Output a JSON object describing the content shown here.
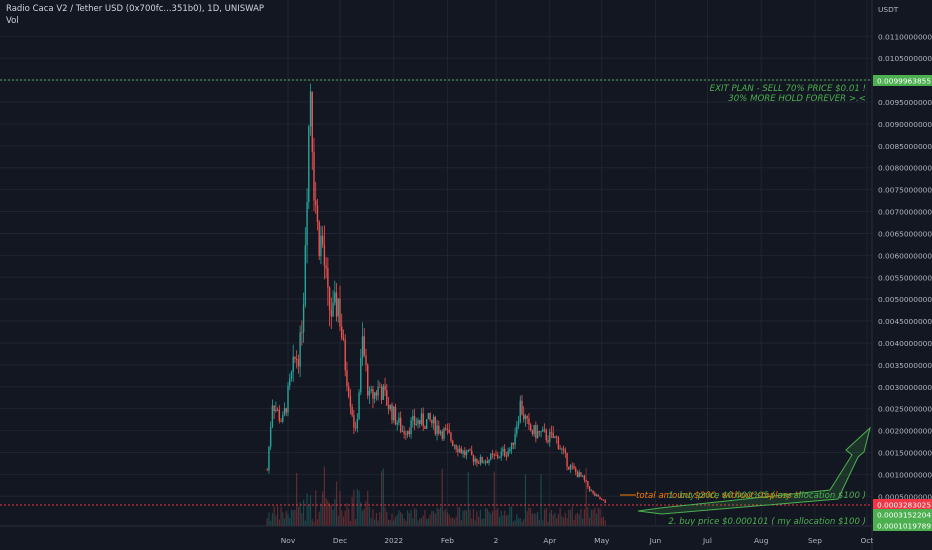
{
  "header": {
    "title": "Radio Caca V2 / Tether USD (0x700fc...351b0), 1D, UNISWAP",
    "volume_label": "Vol",
    "currency": "USDT"
  },
  "chart_data": {
    "type": "candlestick",
    "title": "Radio Caca V2 / Tether USD (0x700fc...351b0), 1D, UNISWAP",
    "ylim": [
      0,
      0.0115
    ],
    "y_ticks": [
      "0.0110000000",
      "0.0105000000",
      "0.0095000000",
      "0.0090000000",
      "0.0085000000",
      "0.0080000000",
      "0.0075000000",
      "0.0070000000",
      "0.0065000000",
      "0.0060000000",
      "0.0055000000",
      "0.0050000000",
      "0.0045000000",
      "0.0040000000",
      "0.0035000000",
      "0.0030000000",
      "0.0025000000",
      "0.0020000000",
      "0.0015000000",
      "0.0010000000",
      "0.0005000000"
    ],
    "x_ticks": [
      "Nov",
      "Dec",
      "2022",
      "Feb",
      "2",
      "Apr",
      "May",
      "Jun",
      "Jul",
      "Aug",
      "Sep",
      "Oct"
    ],
    "price_path": [
      {
        "date": "2021-10-20",
        "price": 0.0011
      },
      {
        "date": "2021-10-23",
        "price": 0.0027
      },
      {
        "date": "2021-10-26",
        "price": 0.0024
      },
      {
        "date": "2021-10-29",
        "price": 0.0022
      },
      {
        "date": "2021-11-01",
        "price": 0.0028
      },
      {
        "date": "2021-11-05",
        "price": 0.0036
      },
      {
        "date": "2021-11-08",
        "price": 0.0039
      },
      {
        "date": "2021-11-10",
        "price": 0.0052
      },
      {
        "date": "2021-11-12",
        "price": 0.0079
      },
      {
        "date": "2021-11-14",
        "price": 0.01
      },
      {
        "date": "2021-11-16",
        "price": 0.0078
      },
      {
        "date": "2021-11-18",
        "price": 0.0066
      },
      {
        "date": "2021-11-21",
        "price": 0.0062
      },
      {
        "date": "2021-11-24",
        "price": 0.0049
      },
      {
        "date": "2021-11-27",
        "price": 0.0046
      },
      {
        "date": "2021-11-30",
        "price": 0.005
      },
      {
        "date": "2021-12-03",
        "price": 0.0038
      },
      {
        "date": "2021-12-06",
        "price": 0.003
      },
      {
        "date": "2021-12-10",
        "price": 0.0019
      },
      {
        "date": "2021-12-14",
        "price": 0.004
      },
      {
        "date": "2021-12-18",
        "price": 0.0027
      },
      {
        "date": "2021-12-24",
        "price": 0.003
      },
      {
        "date": "2021-12-30",
        "price": 0.0025
      },
      {
        "date": "2022-01-06",
        "price": 0.002
      },
      {
        "date": "2022-01-14",
        "price": 0.0022
      },
      {
        "date": "2022-01-22",
        "price": 0.0022
      },
      {
        "date": "2022-02-01",
        "price": 0.0019
      },
      {
        "date": "2022-02-10",
        "price": 0.0015
      },
      {
        "date": "2022-02-20",
        "price": 0.0013
      },
      {
        "date": "2022-03-01",
        "price": 0.0014
      },
      {
        "date": "2022-03-10",
        "price": 0.0016
      },
      {
        "date": "2022-03-15",
        "price": 0.0026
      },
      {
        "date": "2022-03-20",
        "price": 0.002
      },
      {
        "date": "2022-03-28",
        "price": 0.0019
      },
      {
        "date": "2022-04-05",
        "price": 0.0018
      },
      {
        "date": "2022-04-12",
        "price": 0.0012
      },
      {
        "date": "2022-04-20",
        "price": 0.0009
      },
      {
        "date": "2022-04-26",
        "price": 0.00055
      },
      {
        "date": "2022-05-03",
        "price": 0.00035
      }
    ],
    "volume_profile": "low bars at bottom",
    "horizontal_levels": [
      {
        "price_label": "0.0099963855",
        "price": 0.0099963855,
        "color": "#4caf50",
        "style": "dotted"
      },
      {
        "price_label": "0.0003283025",
        "price": 0.0003283025,
        "color": "#f23645",
        "style": "dotted"
      },
      {
        "price_label": "0.0003152204",
        "price": 0.0003152204,
        "color": "#4caf50",
        "style": "solid-tag"
      },
      {
        "price_label": "0.0001019789",
        "price": 0.0001019789,
        "color": "#4caf50",
        "style": "dotted"
      }
    ],
    "annotations": [
      {
        "id": "exit1",
        "text": "EXIT PLAN - SELL 70% PRICE $0.01 !",
        "color": "#4caf50"
      },
      {
        "id": "exit2",
        "text": "30% MORE HOLD FOREVER >.<",
        "color": "#4caf50"
      },
      {
        "id": "total",
        "text": "total amount $200, without stoploss !!",
        "color": "#f57c00"
      },
      {
        "id": "buy1",
        "text": "1. buy price $0.000305 ( my allocation $100  )",
        "color": "#4caf50"
      },
      {
        "id": "buy2",
        "text": "2. buy price $0.000101 ( my allocation $100 )",
        "color": "#4caf50"
      }
    ],
    "projection_arrow": {
      "color": "#4caf50",
      "direction": "up-right"
    }
  },
  "colors": {
    "background": "#131722",
    "up": "#26a69a",
    "down": "#ef5350",
    "grid": "#1f2430",
    "axis_text": "#b2b5be"
  }
}
